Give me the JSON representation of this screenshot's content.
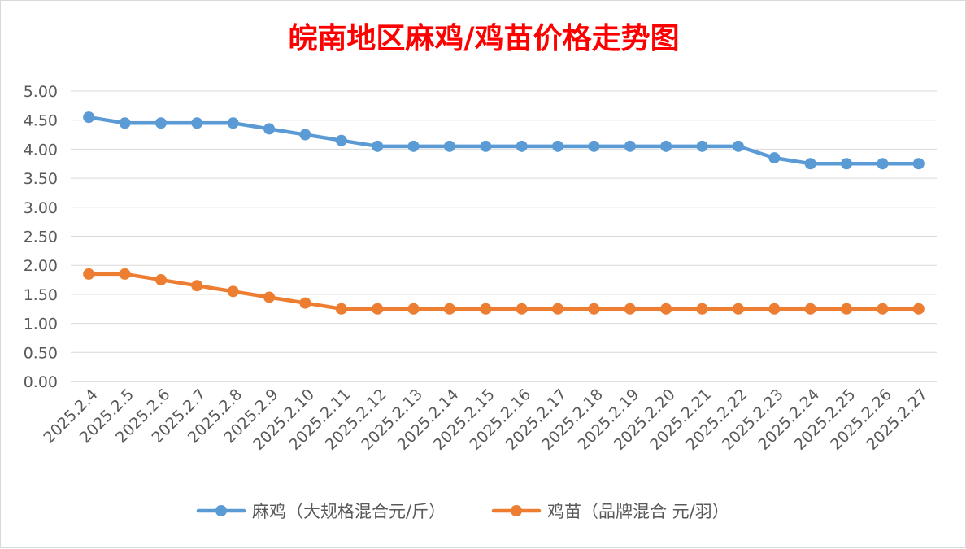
{
  "chart_data": {
    "type": "line",
    "title": "皖南地区麻鸡/鸡苗价格走势图",
    "xlabel": "",
    "ylabel": "",
    "categories": [
      "2025.2.4",
      "2025.2.5",
      "2025.2.6",
      "2025.2.7",
      "2025.2.8",
      "2025.2.9",
      "2025.2.10",
      "2025.2.11",
      "2025.2.12",
      "2025.2.13",
      "2025.2.14",
      "2025.2.15",
      "2025.2.16",
      "2025.2.17",
      "2025.2.18",
      "2025.2.19",
      "2025.2.20",
      "2025.2.21",
      "2025.2.22",
      "2025.2.23",
      "2025.2.24",
      "2025.2.25",
      "2025.2.26",
      "2025.2.27"
    ],
    "ylim": [
      0,
      5
    ],
    "yticks": [
      "0.00",
      "0.50",
      "1.00",
      "1.50",
      "2.00",
      "2.50",
      "3.00",
      "3.50",
      "4.00",
      "4.50",
      "5.00"
    ],
    "grid": true,
    "legend_position": "bottom",
    "series": [
      {
        "name": "麻鸡（大规格混合元/斤）",
        "color": "#5b9bd5",
        "values": [
          4.55,
          4.45,
          4.45,
          4.45,
          4.45,
          4.35,
          4.25,
          4.15,
          4.05,
          4.05,
          4.05,
          4.05,
          4.05,
          4.05,
          4.05,
          4.05,
          4.05,
          4.05,
          4.05,
          3.85,
          3.75,
          3.75,
          3.75,
          3.75
        ]
      },
      {
        "name": "鸡苗（品牌混合 元/羽）",
        "color": "#ed7d31",
        "values": [
          1.85,
          1.85,
          1.75,
          1.65,
          1.55,
          1.45,
          1.35,
          1.25,
          1.25,
          1.25,
          1.25,
          1.25,
          1.25,
          1.25,
          1.25,
          1.25,
          1.25,
          1.25,
          1.25,
          1.25,
          1.25,
          1.25,
          1.25,
          1.25
        ]
      }
    ]
  }
}
